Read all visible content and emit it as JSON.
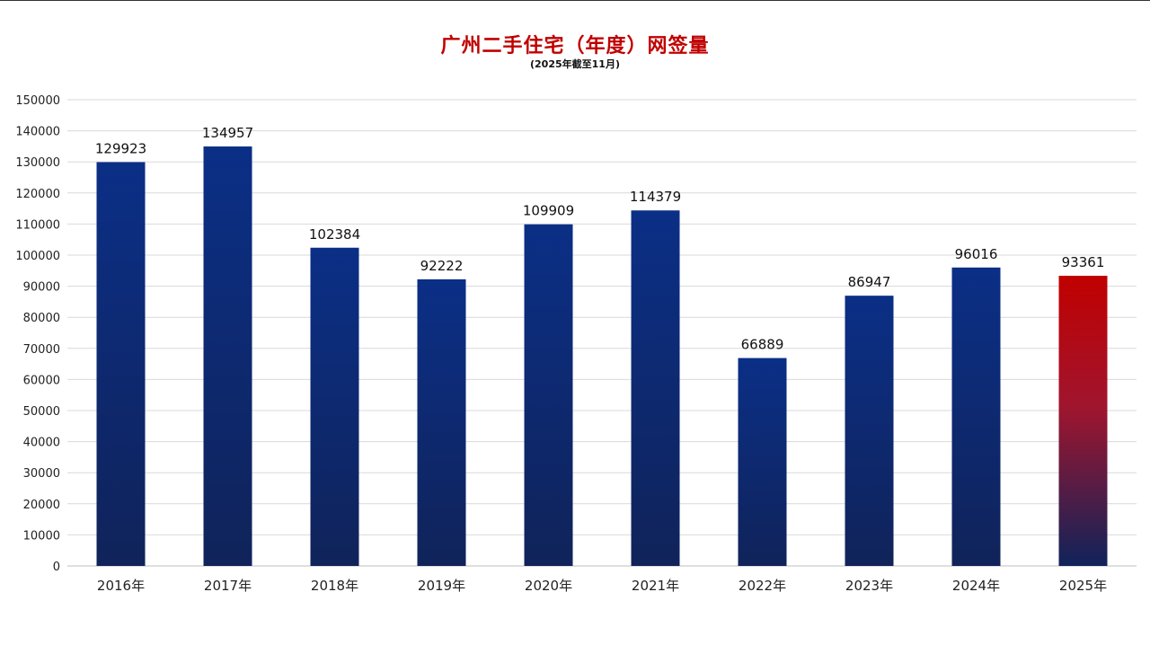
{
  "chart_data": {
    "type": "bar",
    "title": "广州二手住宅（年度）网签量",
    "subtitle": "(2025年截至11月)",
    "categories": [
      "2016年",
      "2017年",
      "2018年",
      "2019年",
      "2020年",
      "2021年",
      "2022年",
      "2023年",
      "2024年",
      "2025年"
    ],
    "values": [
      129923,
      134957,
      102384,
      92222,
      109909,
      114379,
      66889,
      86947,
      96016,
      93361
    ],
    "ylim": [
      0,
      150000
    ],
    "yticks": [
      0,
      10000,
      20000,
      30000,
      40000,
      50000,
      60000,
      70000,
      80000,
      90000,
      100000,
      110000,
      120000,
      130000,
      140000,
      150000
    ],
    "grid": true,
    "legend": "none",
    "colors": {
      "bar": "#0b2f86",
      "bar_bottom": "#10235a",
      "highlight": "#c00000"
    },
    "highlight_category": "2025年"
  }
}
